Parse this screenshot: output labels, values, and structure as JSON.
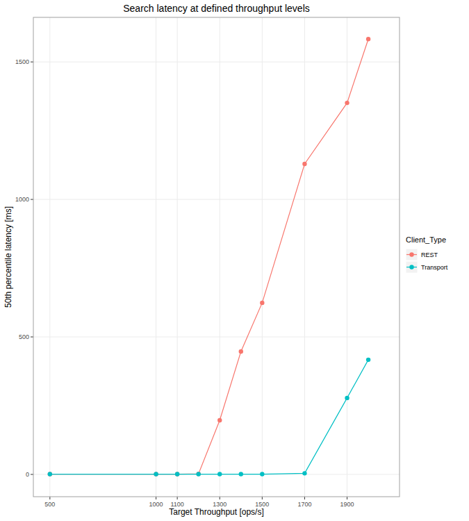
{
  "chart_data": {
    "type": "line",
    "title": "Search latency at defined throughput levels",
    "x_label": "Target Throughput [ops/s]",
    "y_label": "50th percentile latency [ms]",
    "legend_title": "Client_Type",
    "x": [
      500,
      1000,
      1100,
      1200,
      1300,
      1400,
      1500,
      1700,
      1900,
      2000
    ],
    "series": [
      {
        "name": "REST",
        "color": "#F8766D",
        "marker": "circle",
        "line_style": "solid",
        "values": [
          1,
          1,
          1,
          2,
          197,
          447,
          624,
          1129,
          1351,
          1583
        ]
      },
      {
        "name": "Transport",
        "color": "#00BFC4",
        "marker": "circle",
        "line_style": "solid",
        "values": [
          1,
          1,
          1,
          1,
          1,
          1,
          1,
          4,
          278,
          417
        ]
      }
    ],
    "xlim": [
      422,
      2147
    ],
    "ylim": [
      -81,
      1662
    ],
    "xticks": [
      500,
      1000,
      1100,
      1300,
      1500,
      1700,
      1900
    ],
    "yticks": [
      0,
      500,
      1000,
      1500
    ],
    "grid": true,
    "legend": "right"
  }
}
